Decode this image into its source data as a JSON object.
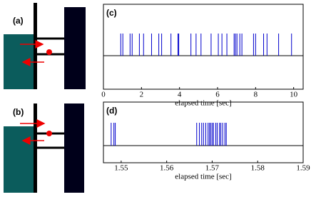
{
  "diagrams": [
    {
      "label": "(a)"
    },
    {
      "label": "(b)"
    }
  ],
  "chart_data": [
    {
      "type": "eventplot",
      "label": "(c)",
      "xlabel": "elapsed time [sec]",
      "color": "#0000cc",
      "xlim": [
        0,
        10.5
      ],
      "xticks": [
        0,
        2,
        4,
        6,
        8,
        10
      ],
      "events": [
        0.91,
        1.02,
        1.4,
        1.51,
        1.89,
        2.11,
        2.53,
        2.91,
        3.06,
        3.55,
        3.92,
        3.96,
        4.6,
        4.87,
        5.13,
        5.66,
        6.04,
        6.23,
        6.49,
        6.87,
        6.94,
        7.02,
        7.17,
        7.28,
        7.89,
        8.0,
        8.42,
        8.6,
        9.21,
        9.89
      ]
    },
    {
      "type": "eventplot",
      "label": "(d)",
      "xlabel": "elapsed time [sec]",
      "color": "#0000cc",
      "xlim": [
        1.5461,
        1.59
      ],
      "xticks": [
        1.55,
        1.56,
        1.57,
        1.58,
        1.59
      ],
      "events": [
        1.5478,
        1.5484,
        1.5487,
        1.5666,
        1.5672,
        1.5677,
        1.5681,
        1.5686,
        1.5691,
        1.5694,
        1.5697,
        1.57,
        1.5703,
        1.5708,
        1.5711,
        1.5716,
        1.5719,
        1.5723,
        1.5728,
        1.5731
      ]
    }
  ]
}
